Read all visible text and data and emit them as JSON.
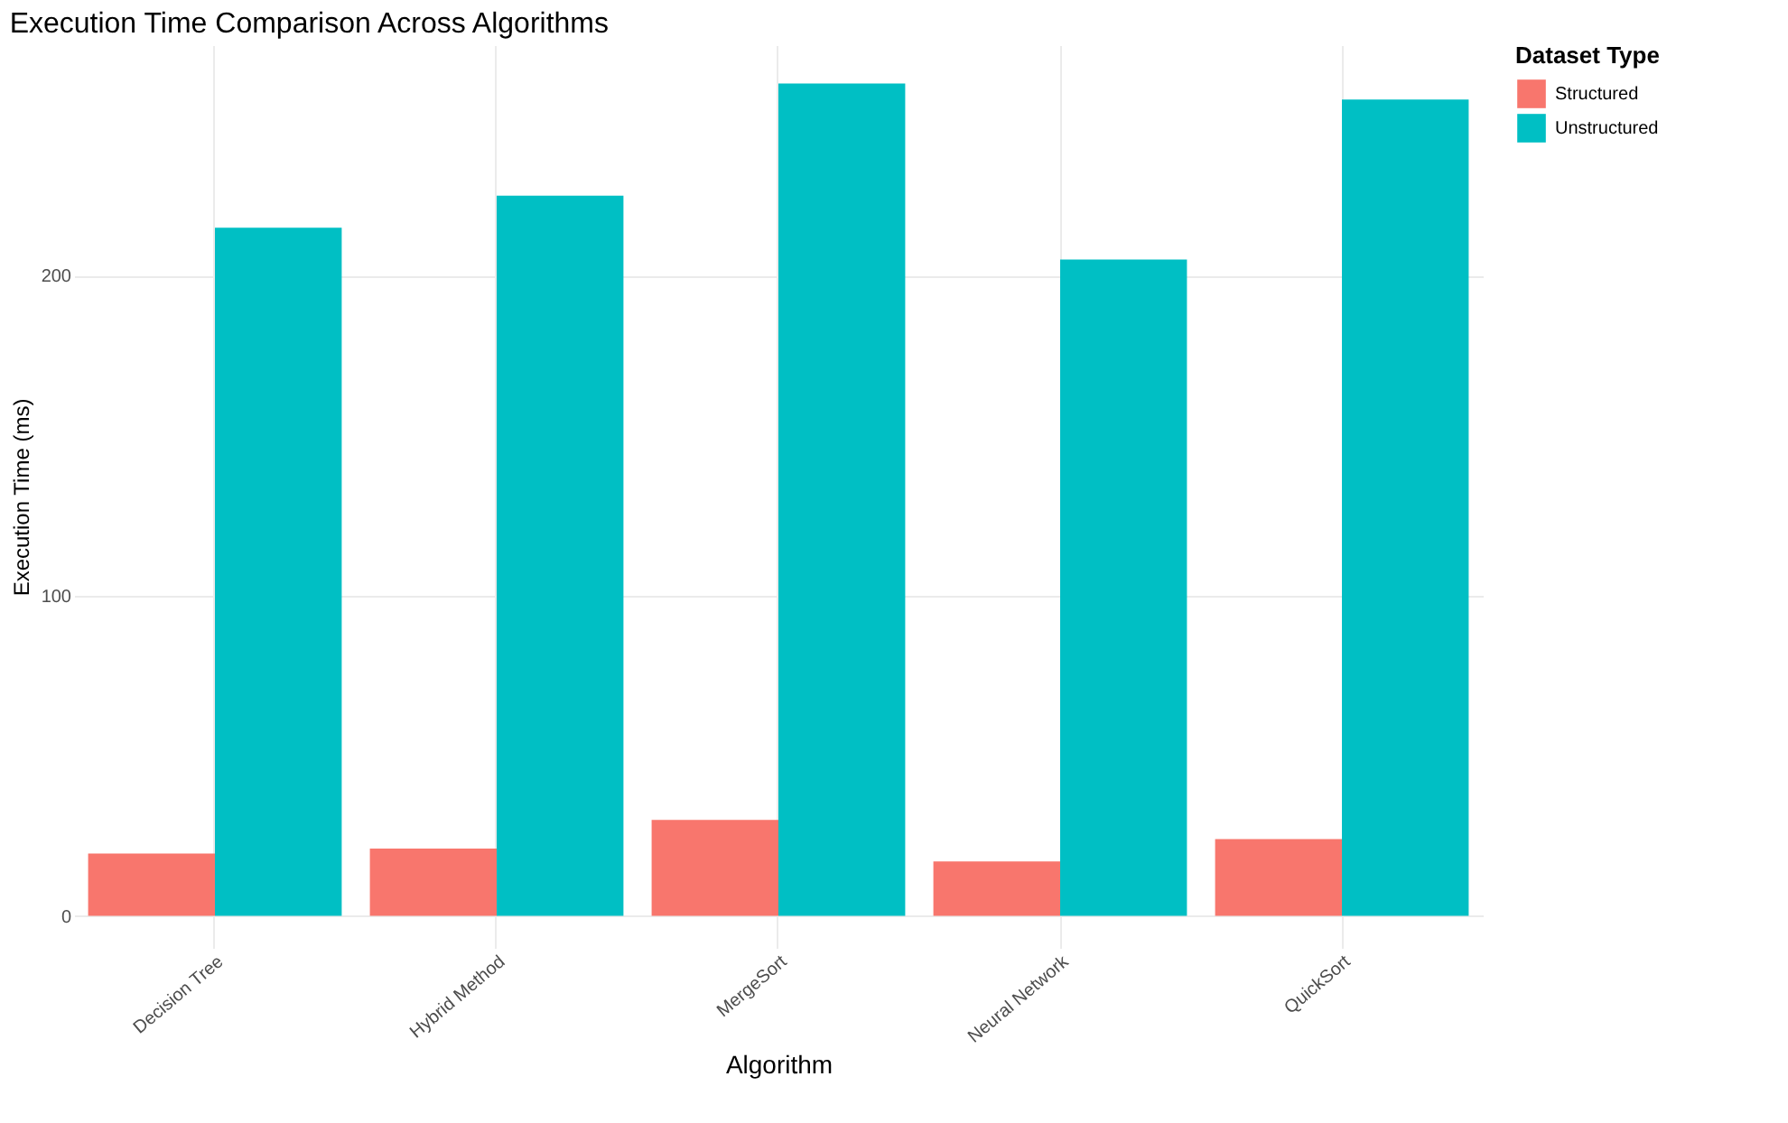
{
  "chart_data": {
    "type": "bar",
    "title": "Execution Time Comparison Across Algorithms",
    "xlabel": "Algorithm",
    "ylabel": "Execution Time (ms)",
    "legend_title": "Dataset Type",
    "categories": [
      "Decision Tree",
      "Hybrid Method",
      "MergeSort",
      "Neural Network",
      "QuickSort"
    ],
    "series": [
      {
        "name": "Structured",
        "color": "#f8766d",
        "values": [
          19.5,
          21,
          30,
          17,
          24
        ]
      },
      {
        "name": "Unstructured",
        "color": "#00bfc4",
        "values": [
          215,
          225,
          260,
          205,
          255
        ]
      }
    ],
    "ylim": [
      -10,
      272
    ],
    "yticks": [
      0,
      100,
      200
    ],
    "grid": true,
    "legend": "right"
  }
}
